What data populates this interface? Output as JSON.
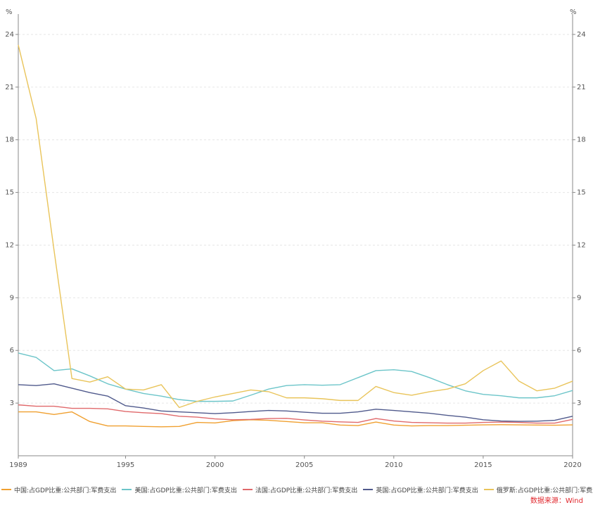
{
  "chart_data": {
    "type": "line",
    "title": "",
    "y_unit_left": "%",
    "y_unit_right": "%",
    "xlim": [
      1989,
      2020
    ],
    "ylim": [
      0,
      25
    ],
    "y_ticks": [
      3,
      6,
      9,
      12,
      15,
      18,
      21,
      24
    ],
    "x_ticks": [
      1989,
      1995,
      2000,
      2005,
      2010,
      2015,
      2020
    ],
    "grid": "horizontal-dashed",
    "legend_position": "bottom",
    "x": [
      1989,
      1990,
      1991,
      1992,
      1993,
      1994,
      1995,
      1996,
      1997,
      1998,
      1999,
      2000,
      2001,
      2002,
      2003,
      2004,
      2005,
      2006,
      2007,
      2008,
      2009,
      2010,
      2011,
      2012,
      2013,
      2014,
      2015,
      2016,
      2017,
      2018,
      2019,
      2020
    ],
    "series": [
      {
        "name": "中国:占GDP比重:公共部门:军费支出",
        "color": "#f0a030",
        "values": [
          2.5,
          2.5,
          2.35,
          2.5,
          1.95,
          1.7,
          1.7,
          1.67,
          1.65,
          1.67,
          1.9,
          1.87,
          2.0,
          2.05,
          2.02,
          1.95,
          1.88,
          1.88,
          1.75,
          1.72,
          1.92,
          1.75,
          1.7,
          1.72,
          1.72,
          1.74,
          1.76,
          1.77,
          1.76,
          1.75,
          1.74,
          1.76
        ]
      },
      {
        "name": "美国:占GDP比重:公共部门:军费支出",
        "color": "#6cc5c9",
        "values": [
          5.85,
          5.6,
          4.85,
          4.95,
          4.55,
          4.1,
          3.8,
          3.55,
          3.4,
          3.2,
          3.1,
          3.1,
          3.12,
          3.45,
          3.8,
          4.0,
          4.05,
          4.02,
          4.05,
          4.45,
          4.85,
          4.9,
          4.8,
          4.45,
          4.05,
          3.7,
          3.5,
          3.42,
          3.3,
          3.3,
          3.42,
          3.72
        ]
      },
      {
        "name": "法国:占GDP比重:公共部门:军费支出",
        "color": "#e0696b",
        "values": [
          2.9,
          2.82,
          2.82,
          2.7,
          2.7,
          2.67,
          2.52,
          2.45,
          2.4,
          2.25,
          2.2,
          2.1,
          2.05,
          2.07,
          2.12,
          2.13,
          2.04,
          1.97,
          1.93,
          1.9,
          2.12,
          1.98,
          1.9,
          1.88,
          1.86,
          1.86,
          1.9,
          1.92,
          1.9,
          1.86,
          1.86,
          2.07
        ]
      },
      {
        "name": "英国:占GDP比重:公共部门:军费支出",
        "color": "#505a8c",
        "values": [
          4.05,
          4.0,
          4.1,
          3.85,
          3.6,
          3.4,
          2.85,
          2.72,
          2.55,
          2.5,
          2.45,
          2.4,
          2.45,
          2.52,
          2.58,
          2.55,
          2.48,
          2.42,
          2.42,
          2.5,
          2.65,
          2.58,
          2.5,
          2.42,
          2.3,
          2.2,
          2.05,
          1.98,
          1.96,
          1.97,
          2.02,
          2.25
        ]
      },
      {
        "name": "俄罗斯:占GDP比重:公共部门:军费支出",
        "color": "#e9c45a",
        "values": [
          23.4,
          19.2,
          11.7,
          4.4,
          4.2,
          4.5,
          3.8,
          3.75,
          4.05,
          2.75,
          3.1,
          3.35,
          3.55,
          3.75,
          3.65,
          3.3,
          3.3,
          3.25,
          3.15,
          3.15,
          3.95,
          3.6,
          3.45,
          3.65,
          3.8,
          4.1,
          4.85,
          5.4,
          4.25,
          3.7,
          3.85,
          4.25
        ]
      }
    ]
  },
  "source_text": "数据来源：Wind"
}
